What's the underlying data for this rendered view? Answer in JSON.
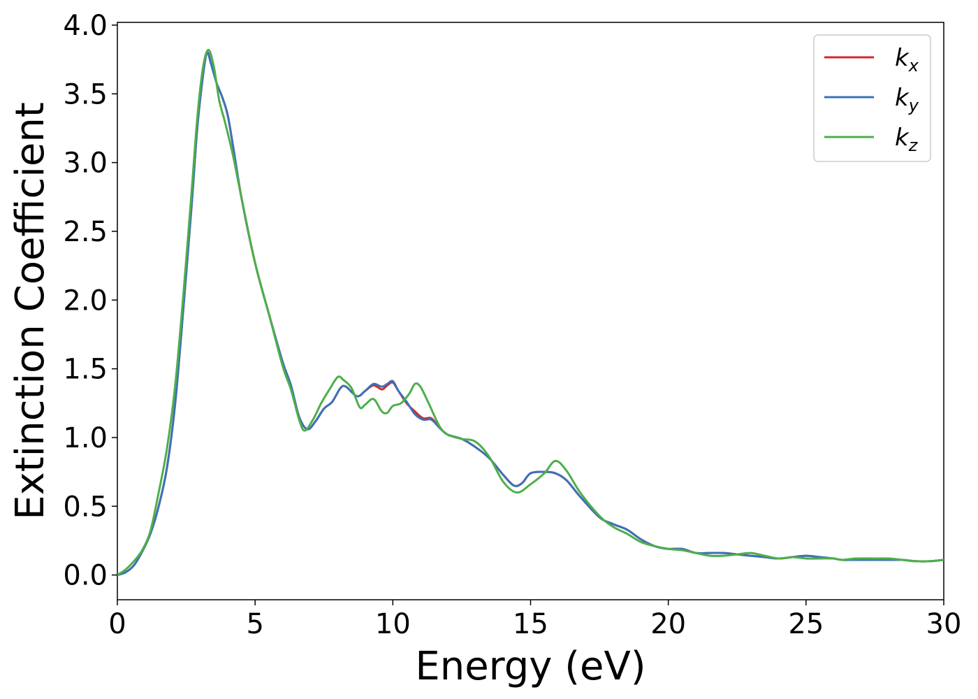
{
  "chart_data": {
    "type": "line",
    "title": "",
    "xlabel": "Energy (eV)",
    "ylabel": "Extinction Coefficient",
    "xlim": [
      0,
      30
    ],
    "ylim": [
      -0.18,
      4.02
    ],
    "xticks": [
      0,
      5,
      10,
      15,
      20,
      25,
      30
    ],
    "yticks": [
      0.0,
      0.5,
      1.0,
      1.5,
      2.0,
      2.5,
      3.0,
      3.5,
      4.0
    ],
    "grid": false,
    "legend": "top-right",
    "series": [
      {
        "name": "k",
        "subscript": "x",
        "color": "#d62728",
        "points": [
          [
            0,
            0
          ],
          [
            0.3,
            0.02
          ],
          [
            0.6,
            0.07
          ],
          [
            0.9,
            0.17
          ],
          [
            1.2,
            0.3
          ],
          [
            1.5,
            0.5
          ],
          [
            1.8,
            0.78
          ],
          [
            2.1,
            1.25
          ],
          [
            2.4,
            1.95
          ],
          [
            2.7,
            2.7
          ],
          [
            2.9,
            3.25
          ],
          [
            3.1,
            3.62
          ],
          [
            3.25,
            3.8
          ],
          [
            3.4,
            3.72
          ],
          [
            3.6,
            3.58
          ],
          [
            3.8,
            3.48
          ],
          [
            4.0,
            3.35
          ],
          [
            4.2,
            3.12
          ],
          [
            4.5,
            2.75
          ],
          [
            5.0,
            2.27
          ],
          [
            5.5,
            1.9
          ],
          [
            6.0,
            1.55
          ],
          [
            6.3,
            1.38
          ],
          [
            6.6,
            1.15
          ],
          [
            6.9,
            1.06
          ],
          [
            7.2,
            1.12
          ],
          [
            7.5,
            1.21
          ],
          [
            7.8,
            1.26
          ],
          [
            8.1,
            1.36
          ],
          [
            8.3,
            1.37
          ],
          [
            8.7,
            1.3
          ],
          [
            9.0,
            1.34
          ],
          [
            9.3,
            1.38
          ],
          [
            9.6,
            1.35
          ],
          [
            9.8,
            1.38
          ],
          [
            10.0,
            1.4
          ],
          [
            10.2,
            1.34
          ],
          [
            10.5,
            1.25
          ],
          [
            10.8,
            1.19
          ],
          [
            11.1,
            1.14
          ],
          [
            11.4,
            1.14
          ],
          [
            11.7,
            1.07
          ],
          [
            12.0,
            1.02
          ],
          [
            12.5,
            0.99
          ],
          [
            13.0,
            0.93
          ],
          [
            13.5,
            0.85
          ],
          [
            14.0,
            0.73
          ],
          [
            14.4,
            0.65
          ],
          [
            14.7,
            0.67
          ],
          [
            15.0,
            0.74
          ],
          [
            15.5,
            0.75
          ],
          [
            15.9,
            0.74
          ],
          [
            16.3,
            0.69
          ],
          [
            16.8,
            0.57
          ],
          [
            17.5,
            0.42
          ],
          [
            18.0,
            0.37
          ],
          [
            18.5,
            0.33
          ],
          [
            19.0,
            0.26
          ],
          [
            19.5,
            0.21
          ],
          [
            20.0,
            0.19
          ],
          [
            20.5,
            0.19
          ],
          [
            21.0,
            0.16
          ],
          [
            21.5,
            0.16
          ],
          [
            22.0,
            0.16
          ],
          [
            22.5,
            0.15
          ],
          [
            23.0,
            0.14
          ],
          [
            23.5,
            0.13
          ],
          [
            24.0,
            0.12
          ],
          [
            24.5,
            0.13
          ],
          [
            25.0,
            0.14
          ],
          [
            25.5,
            0.13
          ],
          [
            26.0,
            0.12
          ],
          [
            26.3,
            0.11
          ],
          [
            26.8,
            0.11
          ],
          [
            27.5,
            0.11
          ],
          [
            28.0,
            0.11
          ],
          [
            28.5,
            0.11
          ],
          [
            29.0,
            0.1
          ],
          [
            29.5,
            0.1
          ],
          [
            30.0,
            0.11
          ]
        ]
      },
      {
        "name": "k",
        "subscript": "y",
        "color": "#3b72b8",
        "points": [
          [
            0,
            0
          ],
          [
            0.3,
            0.02
          ],
          [
            0.6,
            0.07
          ],
          [
            0.9,
            0.17
          ],
          [
            1.2,
            0.3
          ],
          [
            1.5,
            0.5
          ],
          [
            1.8,
            0.78
          ],
          [
            2.1,
            1.25
          ],
          [
            2.4,
            1.95
          ],
          [
            2.7,
            2.7
          ],
          [
            2.9,
            3.25
          ],
          [
            3.1,
            3.62
          ],
          [
            3.25,
            3.8
          ],
          [
            3.4,
            3.72
          ],
          [
            3.6,
            3.58
          ],
          [
            3.8,
            3.48
          ],
          [
            4.0,
            3.35
          ],
          [
            4.2,
            3.12
          ],
          [
            4.5,
            2.75
          ],
          [
            5.0,
            2.27
          ],
          [
            5.5,
            1.9
          ],
          [
            6.0,
            1.55
          ],
          [
            6.3,
            1.38
          ],
          [
            6.6,
            1.15
          ],
          [
            6.9,
            1.06
          ],
          [
            7.2,
            1.12
          ],
          [
            7.5,
            1.21
          ],
          [
            7.8,
            1.26
          ],
          [
            8.1,
            1.36
          ],
          [
            8.3,
            1.37
          ],
          [
            8.7,
            1.3
          ],
          [
            9.0,
            1.34
          ],
          [
            9.3,
            1.39
          ],
          [
            9.6,
            1.37
          ],
          [
            9.8,
            1.39
          ],
          [
            10.0,
            1.41
          ],
          [
            10.2,
            1.34
          ],
          [
            10.5,
            1.26
          ],
          [
            10.8,
            1.17
          ],
          [
            11.1,
            1.13
          ],
          [
            11.4,
            1.13
          ],
          [
            11.7,
            1.07
          ],
          [
            12.0,
            1.02
          ],
          [
            12.5,
            0.99
          ],
          [
            13.0,
            0.93
          ],
          [
            13.5,
            0.85
          ],
          [
            14.0,
            0.73
          ],
          [
            14.4,
            0.65
          ],
          [
            14.7,
            0.67
          ],
          [
            15.0,
            0.74
          ],
          [
            15.5,
            0.75
          ],
          [
            15.9,
            0.74
          ],
          [
            16.3,
            0.69
          ],
          [
            16.8,
            0.57
          ],
          [
            17.5,
            0.42
          ],
          [
            18.0,
            0.37
          ],
          [
            18.5,
            0.33
          ],
          [
            19.0,
            0.26
          ],
          [
            19.5,
            0.21
          ],
          [
            20.0,
            0.19
          ],
          [
            20.5,
            0.19
          ],
          [
            21.0,
            0.16
          ],
          [
            21.5,
            0.16
          ],
          [
            22.0,
            0.16
          ],
          [
            22.5,
            0.15
          ],
          [
            23.0,
            0.14
          ],
          [
            23.5,
            0.13
          ],
          [
            24.0,
            0.12
          ],
          [
            24.5,
            0.13
          ],
          [
            25.0,
            0.14
          ],
          [
            25.5,
            0.13
          ],
          [
            26.0,
            0.12
          ],
          [
            26.3,
            0.11
          ],
          [
            26.8,
            0.11
          ],
          [
            27.5,
            0.11
          ],
          [
            28.0,
            0.11
          ],
          [
            28.5,
            0.11
          ],
          [
            29.0,
            0.1
          ],
          [
            29.5,
            0.1
          ],
          [
            30.0,
            0.11
          ]
        ]
      },
      {
        "name": "k",
        "subscript": "z",
        "color": "#4daf4a",
        "points": [
          [
            0,
            0
          ],
          [
            0.3,
            0.04
          ],
          [
            0.6,
            0.1
          ],
          [
            0.9,
            0.18
          ],
          [
            1.2,
            0.32
          ],
          [
            1.5,
            0.6
          ],
          [
            1.8,
            0.92
          ],
          [
            2.1,
            1.38
          ],
          [
            2.4,
            2.05
          ],
          [
            2.7,
            2.8
          ],
          [
            2.9,
            3.32
          ],
          [
            3.1,
            3.68
          ],
          [
            3.3,
            3.82
          ],
          [
            3.5,
            3.7
          ],
          [
            3.7,
            3.45
          ],
          [
            3.9,
            3.3
          ],
          [
            4.2,
            3.05
          ],
          [
            4.5,
            2.75
          ],
          [
            5.0,
            2.27
          ],
          [
            5.5,
            1.9
          ],
          [
            6.0,
            1.52
          ],
          [
            6.3,
            1.35
          ],
          [
            6.6,
            1.13
          ],
          [
            6.8,
            1.05
          ],
          [
            7.1,
            1.13
          ],
          [
            7.4,
            1.25
          ],
          [
            7.7,
            1.35
          ],
          [
            8.0,
            1.44
          ],
          [
            8.2,
            1.42
          ],
          [
            8.5,
            1.36
          ],
          [
            8.8,
            1.22
          ],
          [
            9.0,
            1.24
          ],
          [
            9.3,
            1.28
          ],
          [
            9.6,
            1.19
          ],
          [
            9.8,
            1.18
          ],
          [
            10.0,
            1.23
          ],
          [
            10.3,
            1.25
          ],
          [
            10.6,
            1.32
          ],
          [
            10.8,
            1.39
          ],
          [
            11.0,
            1.37
          ],
          [
            11.3,
            1.25
          ],
          [
            11.7,
            1.08
          ],
          [
            12.0,
            1.02
          ],
          [
            12.5,
            0.99
          ],
          [
            13.0,
            0.97
          ],
          [
            13.5,
            0.86
          ],
          [
            14.0,
            0.68
          ],
          [
            14.5,
            0.6
          ],
          [
            15.0,
            0.66
          ],
          [
            15.5,
            0.74
          ],
          [
            15.9,
            0.83
          ],
          [
            16.3,
            0.76
          ],
          [
            16.8,
            0.6
          ],
          [
            17.5,
            0.43
          ],
          [
            18.0,
            0.35
          ],
          [
            18.5,
            0.3
          ],
          [
            19.0,
            0.24
          ],
          [
            19.5,
            0.21
          ],
          [
            20.0,
            0.19
          ],
          [
            20.5,
            0.18
          ],
          [
            21.0,
            0.16
          ],
          [
            21.5,
            0.14
          ],
          [
            22.0,
            0.14
          ],
          [
            22.5,
            0.15
          ],
          [
            23.0,
            0.16
          ],
          [
            23.5,
            0.14
          ],
          [
            24.0,
            0.12
          ],
          [
            24.5,
            0.13
          ],
          [
            25.0,
            0.12
          ],
          [
            25.5,
            0.12
          ],
          [
            26.0,
            0.12
          ],
          [
            26.3,
            0.11
          ],
          [
            26.8,
            0.12
          ],
          [
            27.5,
            0.12
          ],
          [
            28.0,
            0.12
          ],
          [
            28.5,
            0.11
          ],
          [
            29.0,
            0.1
          ],
          [
            29.5,
            0.1
          ],
          [
            30.0,
            0.11
          ]
        ]
      }
    ]
  }
}
